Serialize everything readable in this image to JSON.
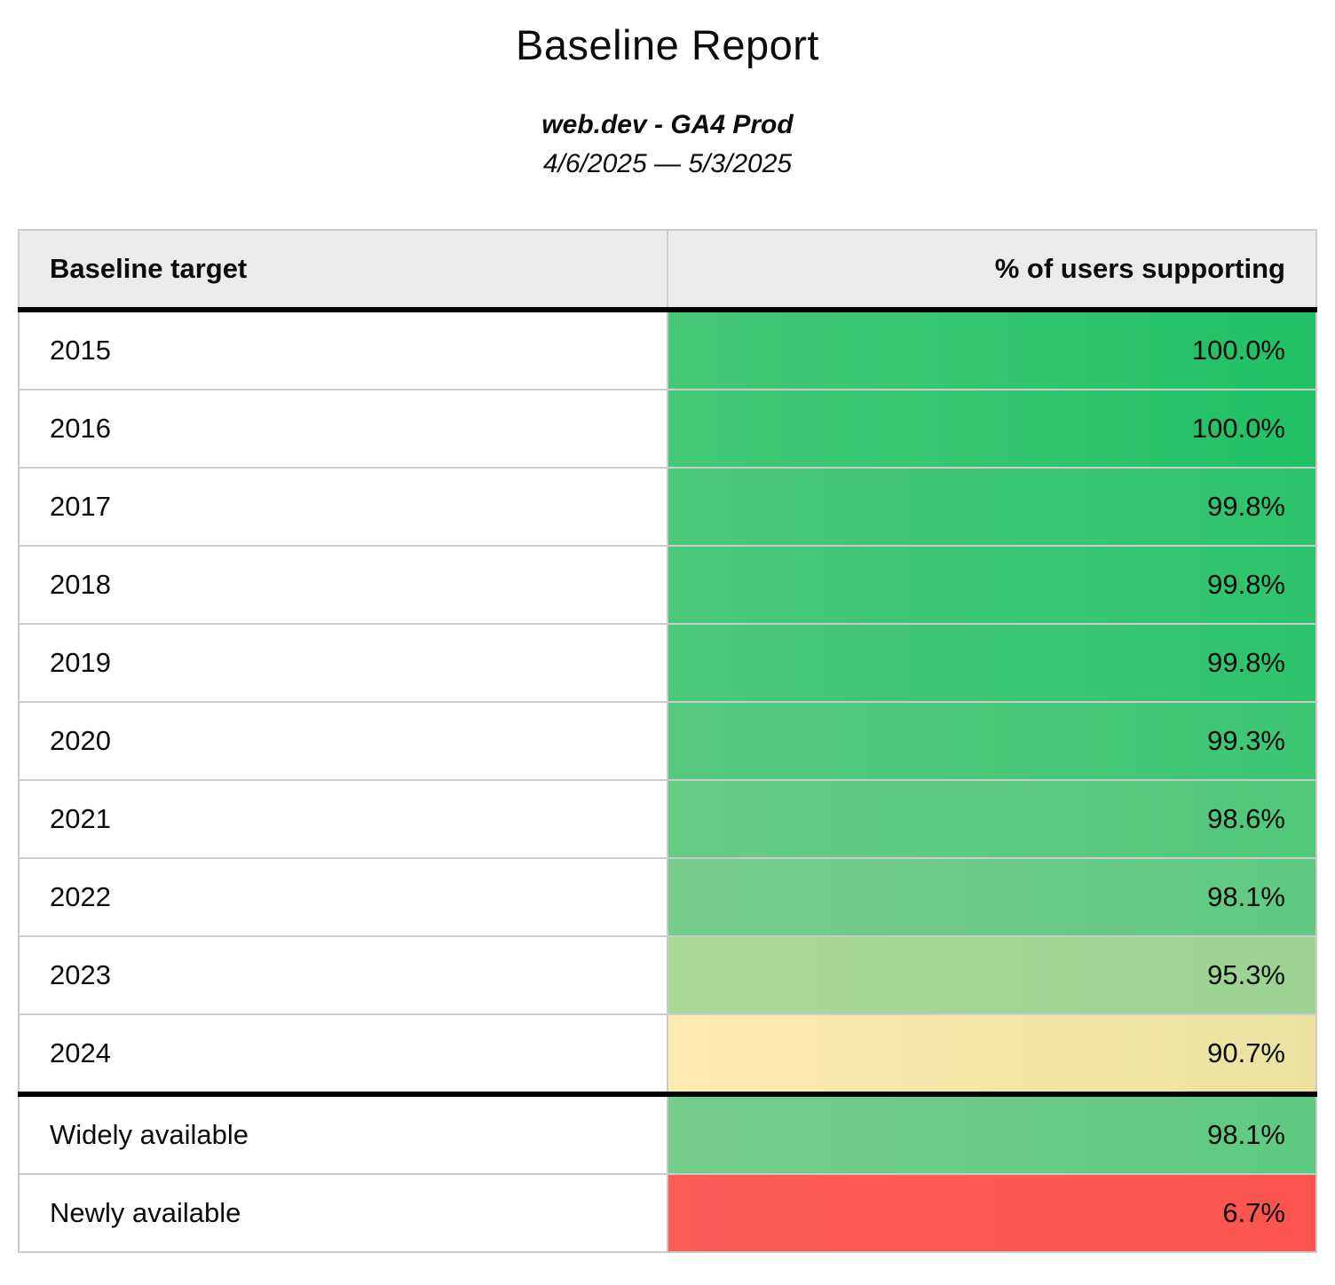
{
  "header": {
    "title": "Baseline Report",
    "subtitle": "web.dev - GA4 Prod",
    "date_range": "4/6/2025 — 5/3/2025"
  },
  "colors": {
    "header_background": "#ebebeb",
    "grid_border": "#cbcbcb",
    "section_divider": "#000000",
    "green_high": "#20c166",
    "green_mid": "#5fca82",
    "green_low": "#9cd391",
    "yellow": "#ebe19f",
    "red": "#fb5450"
  },
  "chart_data": {
    "type": "table",
    "title": "Baseline Report",
    "subtitle": "web.dev - GA4 Prod",
    "date_range": "4/6/2025 — 5/3/2025",
    "columns": [
      "Baseline target",
      "% of users supporting"
    ],
    "value_format": "percent",
    "value_range": [
      0,
      100
    ],
    "color_scale": "red-yellow-green",
    "rows": [
      {
        "label": "2015",
        "value": "100.0%",
        "value_num": 100.0,
        "color_left": "#45c877",
        "color_right": "#20c166",
        "divider_after": false
      },
      {
        "label": "2016",
        "value": "100.0%",
        "value_num": 100.0,
        "color_left": "#45c877",
        "color_right": "#20c166",
        "divider_after": false
      },
      {
        "label": "2017",
        "value": "99.8%",
        "value_num": 99.8,
        "color_left": "#4bc87a",
        "color_right": "#2cc36c",
        "divider_after": false
      },
      {
        "label": "2018",
        "value": "99.8%",
        "value_num": 99.8,
        "color_left": "#4bc87a",
        "color_right": "#2cc36c",
        "divider_after": false
      },
      {
        "label": "2019",
        "value": "99.8%",
        "value_num": 99.8,
        "color_left": "#4bc87a",
        "color_right": "#2cc36c",
        "divider_after": false
      },
      {
        "label": "2020",
        "value": "99.3%",
        "value_num": 99.3,
        "color_left": "#55c97e",
        "color_right": "#3dc673",
        "divider_after": false
      },
      {
        "label": "2021",
        "value": "98.6%",
        "value_num": 98.6,
        "color_left": "#67cb86",
        "color_right": "#4fc87a",
        "divider_after": false
      },
      {
        "label": "2022",
        "value": "98.1%",
        "value_num": 98.1,
        "color_left": "#75cc8b",
        "color_right": "#5fca82",
        "divider_after": false
      },
      {
        "label": "2023",
        "value": "95.3%",
        "value_num": 95.3,
        "color_left": "#abd795",
        "color_right": "#9cd391",
        "divider_after": false
      },
      {
        "label": "2024",
        "value": "90.7%",
        "value_num": 90.7,
        "color_left": "#feeab3",
        "color_right": "#ebe19f",
        "divider_after": true
      },
      {
        "label": "Widely available",
        "value": "98.1%",
        "value_num": 98.1,
        "color_left": "#75cc8b",
        "color_right": "#5fca82",
        "divider_after": false
      },
      {
        "label": "Newly available",
        "value": "6.7%",
        "value_num": 6.7,
        "color_left": "#fc5b58",
        "color_right": "#fb5450",
        "divider_after": false
      }
    ]
  }
}
